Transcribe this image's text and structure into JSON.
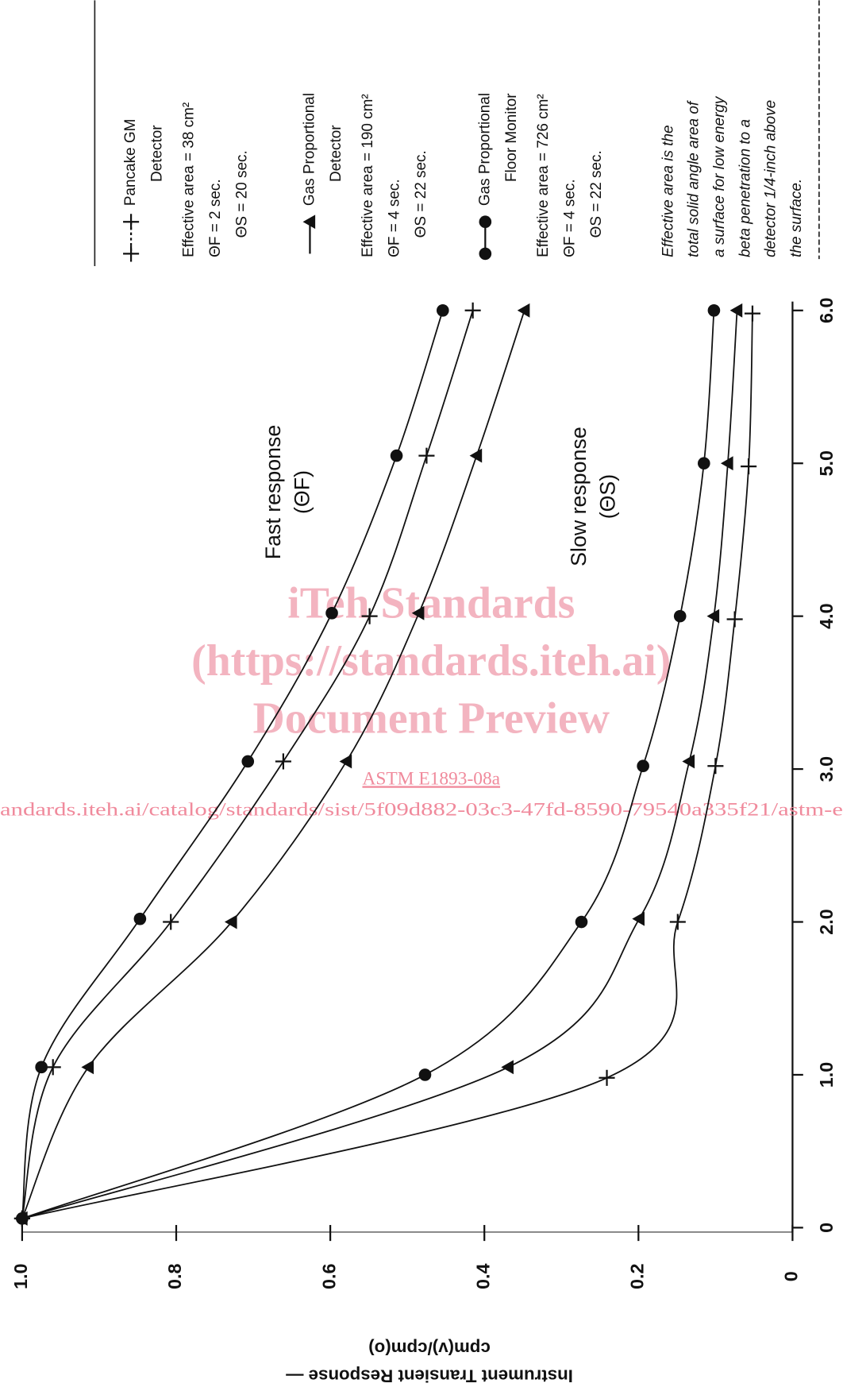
{
  "chart_data": {
    "type": "line",
    "ylabel": [
      "Instrument Transient Response —",
      "cpm(v)/cpm(o)"
    ],
    "xlim": [
      0,
      6.0
    ],
    "xticks": [
      0,
      {
        "value": 1,
        "label": "1.0"
      },
      {
        "value": 2,
        "label": "2.0"
      },
      {
        "value": 3,
        "label": "3.0"
      },
      {
        "value": 4,
        "label": "4.0"
      },
      {
        "value": 5,
        "label": "5.0"
      },
      {
        "value": 6,
        "label": "6.0"
      }
    ],
    "ylim": [
      0,
      1.0
    ],
    "yticks": [
      0,
      0.2,
      0.4,
      0.6,
      0.8,
      {
        "value": 1,
        "label": "1.0"
      }
    ],
    "color": "#111111",
    "annotations": {
      "fast": [
        "Fast  response",
        "(ΘF)"
      ],
      "slow": [
        "Slow  response",
        "(ΘS)"
      ]
    },
    "detectors": [
      {
        "name": [
          "Pancake GM",
          "Detector"
        ],
        "area": "Effective area = 38 cm²",
        "theta_f": "ΘF = 2 sec.",
        "theta_s": "ΘS = 20 sec.",
        "marker": "plus",
        "fast": {
          "x": [
            0.06,
            1.05,
            2.0,
            3.05,
            4.0,
            5.05,
            6.0
          ],
          "values": [
            1.0,
            0.96,
            0.807,
            0.661,
            0.549,
            0.475,
            0.415
          ]
        },
        "slow": {
          "x": [
            0.06,
            0.98,
            2.0,
            3.02,
            3.98,
            4.98,
            5.98
          ],
          "values": [
            1.0,
            0.241,
            0.149,
            0.1,
            0.075,
            0.057,
            0.052
          ]
        }
      },
      {
        "name": [
          "Gas Proportional",
          "Detector"
        ],
        "area": "Effective area = 190 cm²",
        "theta_f": "ΘF = 4 sec.",
        "theta_s": "ΘS = 22 sec.",
        "marker": "triangle",
        "fast": {
          "x": [
            0.06,
            1.05,
            2.0,
            3.05,
            4.02,
            5.05,
            6.0
          ],
          "values": [
            1.0,
            0.914,
            0.728,
            0.579,
            0.485,
            0.41,
            0.348
          ]
        },
        "slow": {
          "x": [
            0.06,
            1.05,
            2.02,
            3.05,
            4.0,
            5.0,
            6.0
          ],
          "values": [
            1.0,
            0.369,
            0.199,
            0.134,
            0.102,
            0.084,
            0.072
          ]
        }
      },
      {
        "name": [
          "Gas Proportional",
          "Floor Monitor"
        ],
        "area": "Effective area = 726 cm²",
        "theta_f": "ΘF = 4 sec.",
        "theta_s": "ΘS = 22 sec.",
        "marker": "circle",
        "fast": {
          "x": [
            0.06,
            1.05,
            2.02,
            3.05,
            4.02,
            5.05,
            6.0
          ],
          "values": [
            1.0,
            0.975,
            0.847,
            0.707,
            0.598,
            0.514,
            0.454
          ]
        },
        "slow": {
          "x": [
            0.06,
            1.0,
            2.0,
            3.02,
            4.0,
            5.0,
            6.0
          ],
          "values": [
            1.0,
            0.477,
            0.274,
            0.194,
            0.146,
            0.115,
            0.102
          ]
        }
      }
    ],
    "note": [
      "Effective area is the",
      "total solid angle area of",
      "a surface for low energy",
      "beta penetration to a",
      "detector 1/4-inch above",
      "the surface."
    ],
    "watermark": [
      "iTeh Standards",
      "(https://standards.iteh.ai)",
      "Document Preview"
    ],
    "link": "ASTM E1893-08a",
    "url": "andards.iteh.ai/catalog/standards/sist/5f09d882-03c3-47fd-8590-79540a335f21/astm-e"
  }
}
